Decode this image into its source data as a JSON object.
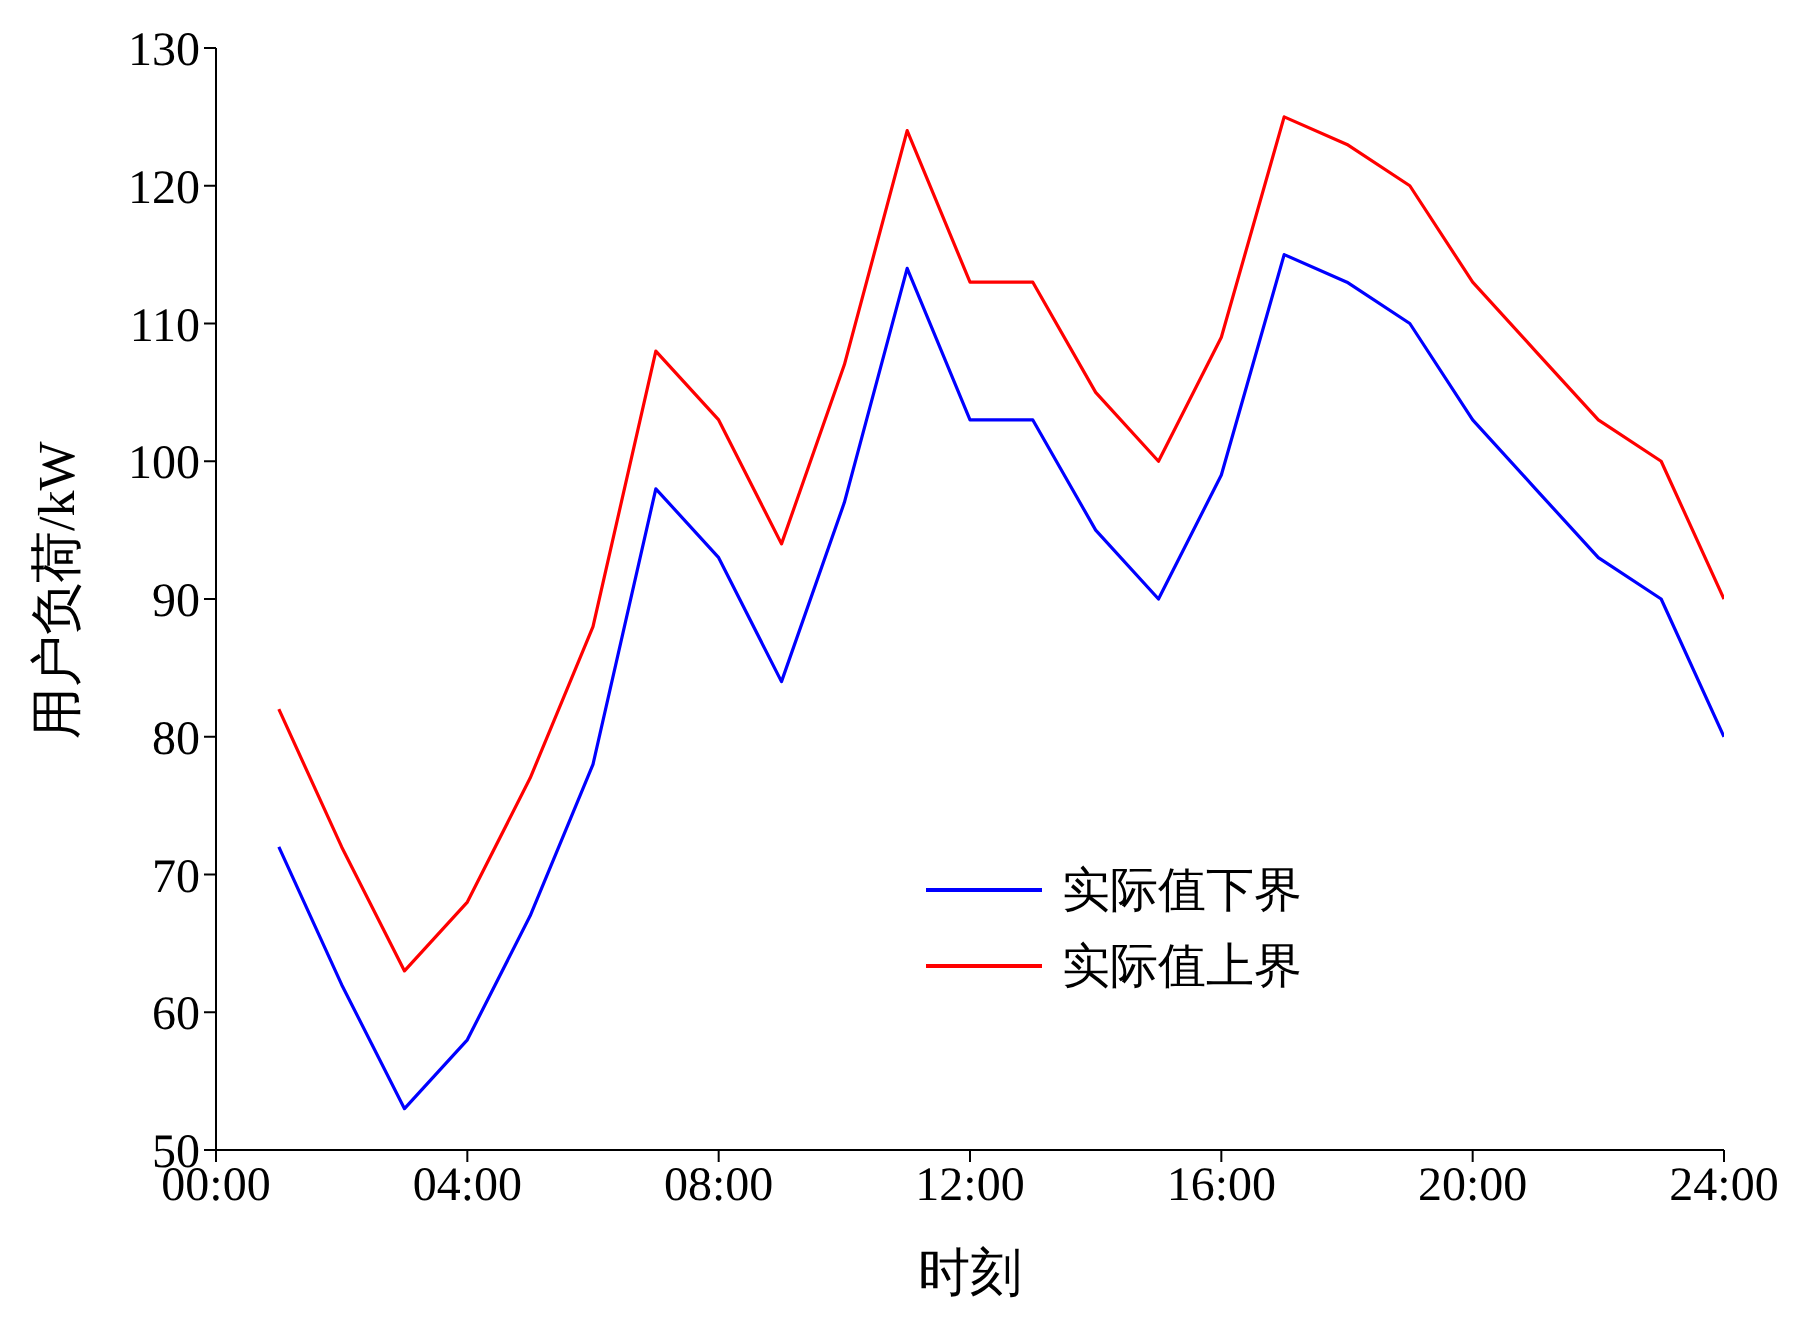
{
  "chart_data": {
    "type": "line",
    "xlabel": "时刻",
    "ylabel": "用户负荷/kW",
    "x": [
      1,
      2,
      3,
      4,
      5,
      6,
      7,
      8,
      9,
      10,
      11,
      12,
      13,
      14,
      15,
      16,
      17,
      18,
      19,
      20,
      21,
      22,
      23,
      24
    ],
    "series": [
      {
        "name": "实际值下界",
        "color": "#0000ff",
        "values": [
          72,
          62,
          53,
          58,
          67,
          78,
          98,
          93,
          84,
          97,
          114,
          103,
          103,
          95,
          90,
          99,
          115,
          113,
          110,
          103,
          98,
          93,
          90,
          80
        ]
      },
      {
        "name": "实际值上界",
        "color": "#ff0000",
        "values": [
          82,
          72,
          63,
          68,
          77,
          88,
          108,
          103,
          94,
          107,
          124,
          113,
          113,
          105,
          100,
          109,
          125,
          123,
          120,
          113,
          108,
          103,
          100,
          90
        ]
      }
    ],
    "xlim": [
      0,
      24
    ],
    "xticks": [
      {
        "value": 0,
        "label": "00:00"
      },
      {
        "value": 4,
        "label": "04:00"
      },
      {
        "value": 8,
        "label": "08:00"
      },
      {
        "value": 12,
        "label": "12:00"
      },
      {
        "value": 16,
        "label": "16:00"
      },
      {
        "value": 20,
        "label": "20:00"
      },
      {
        "value": 24,
        "label": "24:00"
      }
    ],
    "ylim": [
      50,
      130
    ],
    "yticks": [
      50,
      60,
      70,
      80,
      90,
      100,
      110,
      120,
      130
    ],
    "grid": false,
    "legend": "bottom right",
    "marker": "none",
    "line_style": "solid"
  }
}
